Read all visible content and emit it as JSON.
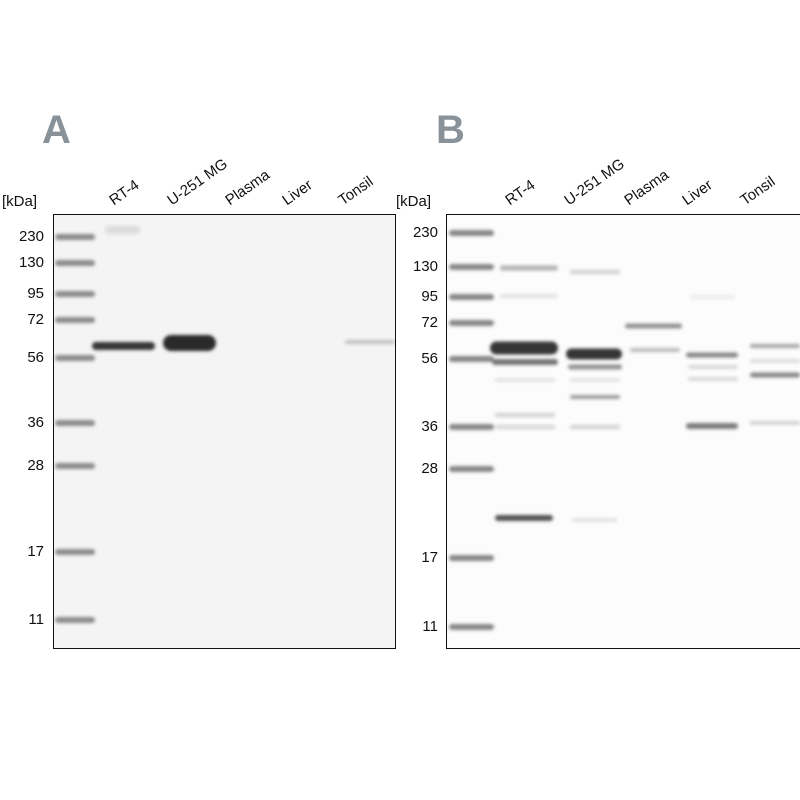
{
  "panels": [
    {
      "letter": "A",
      "unit_label": "[kDa]",
      "lanes": [
        "RT-4",
        "U-251 MG",
        "Plasma",
        "Liver",
        "Tonsil"
      ],
      "markers": [
        "230",
        "130",
        "95",
        "72",
        "56",
        "36",
        "28",
        "17",
        "11"
      ]
    },
    {
      "letter": "B",
      "unit_label": "[kDa]",
      "lanes": [
        "RT-4",
        "U-251 MG",
        "Plasma",
        "Liver",
        "Tonsil"
      ],
      "markers": [
        "230",
        "130",
        "95",
        "72",
        "56",
        "36",
        "28",
        "17",
        "11"
      ]
    }
  ],
  "colors": {
    "letter": "#8a9299",
    "band": "#2a2a2a",
    "ladder": "#6a6a6a",
    "membrane_a": "#f4f4f4",
    "membrane_b": "#fcfcfc"
  }
}
